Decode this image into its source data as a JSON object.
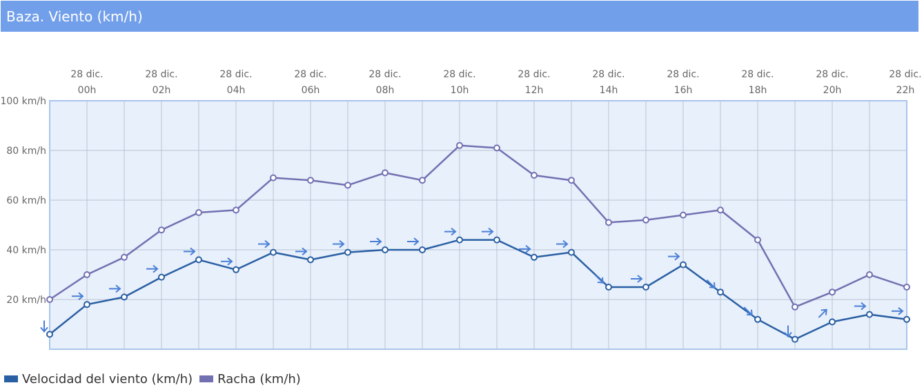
{
  "header": {
    "title": "Baza. Viento (km/h)",
    "background": "#729fea"
  },
  "chart_data": {
    "type": "line",
    "title": "Baza. Viento (km/h)",
    "x_tick_labels": [
      [
        "28 dic.",
        "00h"
      ],
      [
        "28 dic.",
        "02h"
      ],
      [
        "28 dic.",
        "04h"
      ],
      [
        "28 dic.",
        "06h"
      ],
      [
        "28 dic.",
        "08h"
      ],
      [
        "28 dic.",
        "10h"
      ],
      [
        "28 dic.",
        "12h"
      ],
      [
        "28 dic.",
        "14h"
      ],
      [
        "28 dic.",
        "16h"
      ],
      [
        "28 dic.",
        "18h"
      ],
      [
        "28 dic.",
        "20h"
      ],
      [
        "28 dic.",
        "22h"
      ]
    ],
    "x": [
      "23h",
      "00h",
      "01h",
      "02h",
      "03h",
      "04h",
      "05h",
      "06h",
      "07h",
      "08h",
      "09h",
      "10h",
      "11h",
      "12h",
      "13h",
      "14h",
      "15h",
      "16h",
      "17h",
      "18h",
      "19h",
      "20h",
      "21h",
      "22h"
    ],
    "y_ticks": [
      {
        "value": 20,
        "label": "20 km/h"
      },
      {
        "value": 40,
        "label": "40 km/h"
      },
      {
        "value": 60,
        "label": "60 km/h"
      },
      {
        "value": 80,
        "label": "80 km/h"
      },
      {
        "value": 100,
        "label": "100 km/h"
      }
    ],
    "ylim": [
      0,
      100
    ],
    "grid": true,
    "legend_placement": "bottom-left",
    "series": [
      {
        "name": "Velocidad del viento (km/h)",
        "color": "#2a5fa3",
        "values": [
          6,
          18,
          21,
          29,
          36,
          32,
          39,
          36,
          39,
          40,
          40,
          44,
          44,
          37,
          39,
          25,
          25,
          34,
          23,
          12,
          4,
          11,
          14,
          12
        ],
        "wind_direction_arrows": [
          "down",
          "right",
          "right",
          "right",
          "right",
          "right",
          "right",
          "right",
          "right",
          "right",
          "right",
          "right",
          "right",
          "right",
          "right",
          "down-right",
          "right",
          "right",
          "down-right",
          "down-right",
          "down",
          "up-right",
          "right",
          "right"
        ]
      },
      {
        "name": "Racha (km/h)",
        "color": "#7270b1",
        "values": [
          20,
          30,
          37,
          48,
          55,
          56,
          69,
          68,
          66,
          71,
          68,
          82,
          81,
          70,
          68,
          51,
          52,
          54,
          56,
          44,
          17,
          23,
          30,
          25
        ]
      }
    ],
    "plot_background": "#e8f0fb",
    "plot_border": "#a9c4ec",
    "arrow_color": "#4a7fd6"
  }
}
